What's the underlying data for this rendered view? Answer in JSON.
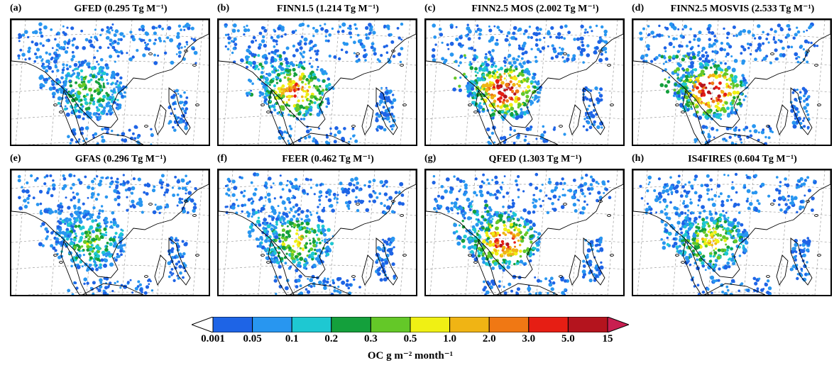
{
  "panels": [
    {
      "id": "a",
      "letter": "(a)",
      "title": "GFED (0.295 Tg M⁻¹)",
      "intensity": 0.35
    },
    {
      "id": "b",
      "letter": "(b)",
      "title": "FINN1.5 (1.214 Tg M⁻¹)",
      "intensity": 0.75
    },
    {
      "id": "c",
      "letter": "(c)",
      "title": "FINN2.5 MOS (2.002 Tg M⁻¹)",
      "intensity": 0.95
    },
    {
      "id": "d",
      "letter": "(d)",
      "title": "FINN2.5 MOSVIS (2.533 Tg M⁻¹)",
      "intensity": 1.0
    },
    {
      "id": "e",
      "letter": "(e)",
      "title": "GFAS (0.296 Tg M⁻¹)",
      "intensity": 0.35
    },
    {
      "id": "f",
      "letter": "(f)",
      "title": "FEER (0.462 Tg M⁻¹)",
      "intensity": 0.5
    },
    {
      "id": "g",
      "letter": "(g)",
      "title": "QFED (1.303 Tg M⁻¹)",
      "intensity": 0.85
    },
    {
      "id": "h",
      "letter": "(h)",
      "title": "IS4FIRES (0.604 Tg M⁻¹)",
      "intensity": 0.55
    }
  ],
  "colorbar": {
    "ticks": [
      "0.001",
      "0.05",
      "0.1",
      "0.2",
      "0.3",
      "0.5",
      "1.0",
      "2.0",
      "3.0",
      "5.0",
      "15"
    ],
    "colors": [
      "#ffffff",
      "#1e64e6",
      "#2896f0",
      "#1ec8d2",
      "#14a03c",
      "#64c828",
      "#f0f014",
      "#f0b414",
      "#f07814",
      "#e61e14",
      "#b4141e",
      "#c81e50"
    ],
    "label": "OC g m⁻² month⁻¹"
  }
}
